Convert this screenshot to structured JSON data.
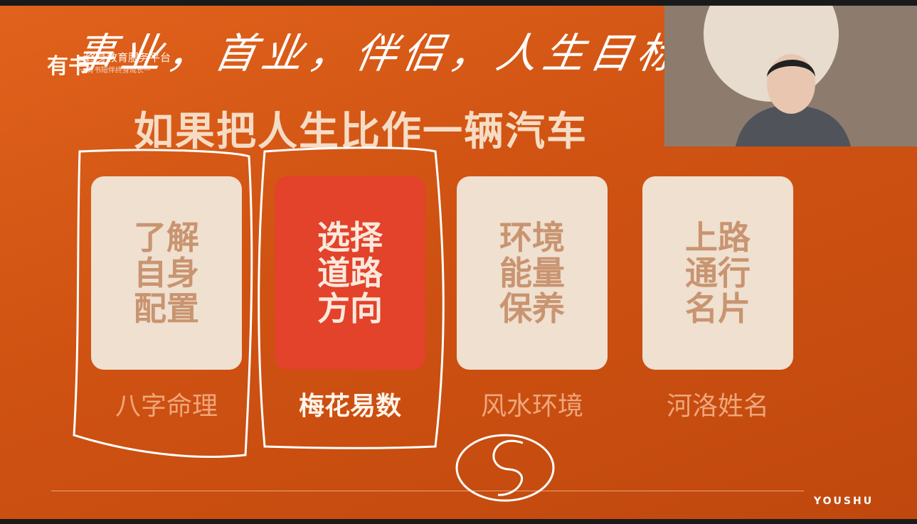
{
  "logo": {
    "brand": "有书",
    "line1": "终身教育服务平台",
    "line2": "一有书陪伴终身成长一"
  },
  "handwriting": "事业，首业，伴侣，人生目标",
  "slide": {
    "title": "如果把人生比作一辆汽车",
    "cards": [
      {
        "lines": [
          "了解",
          "自身",
          "配置"
        ],
        "label": "八字命理"
      },
      {
        "lines": [
          "选择",
          "道路",
          "方向"
        ],
        "label": "梅花易数"
      },
      {
        "lines": [
          "环境",
          "能量",
          "保养"
        ],
        "label": "风水环境"
      },
      {
        "lines": [
          "上路",
          "通行",
          "名片"
        ],
        "label": "河洛姓名"
      }
    ],
    "footer": "YOUSHU"
  }
}
